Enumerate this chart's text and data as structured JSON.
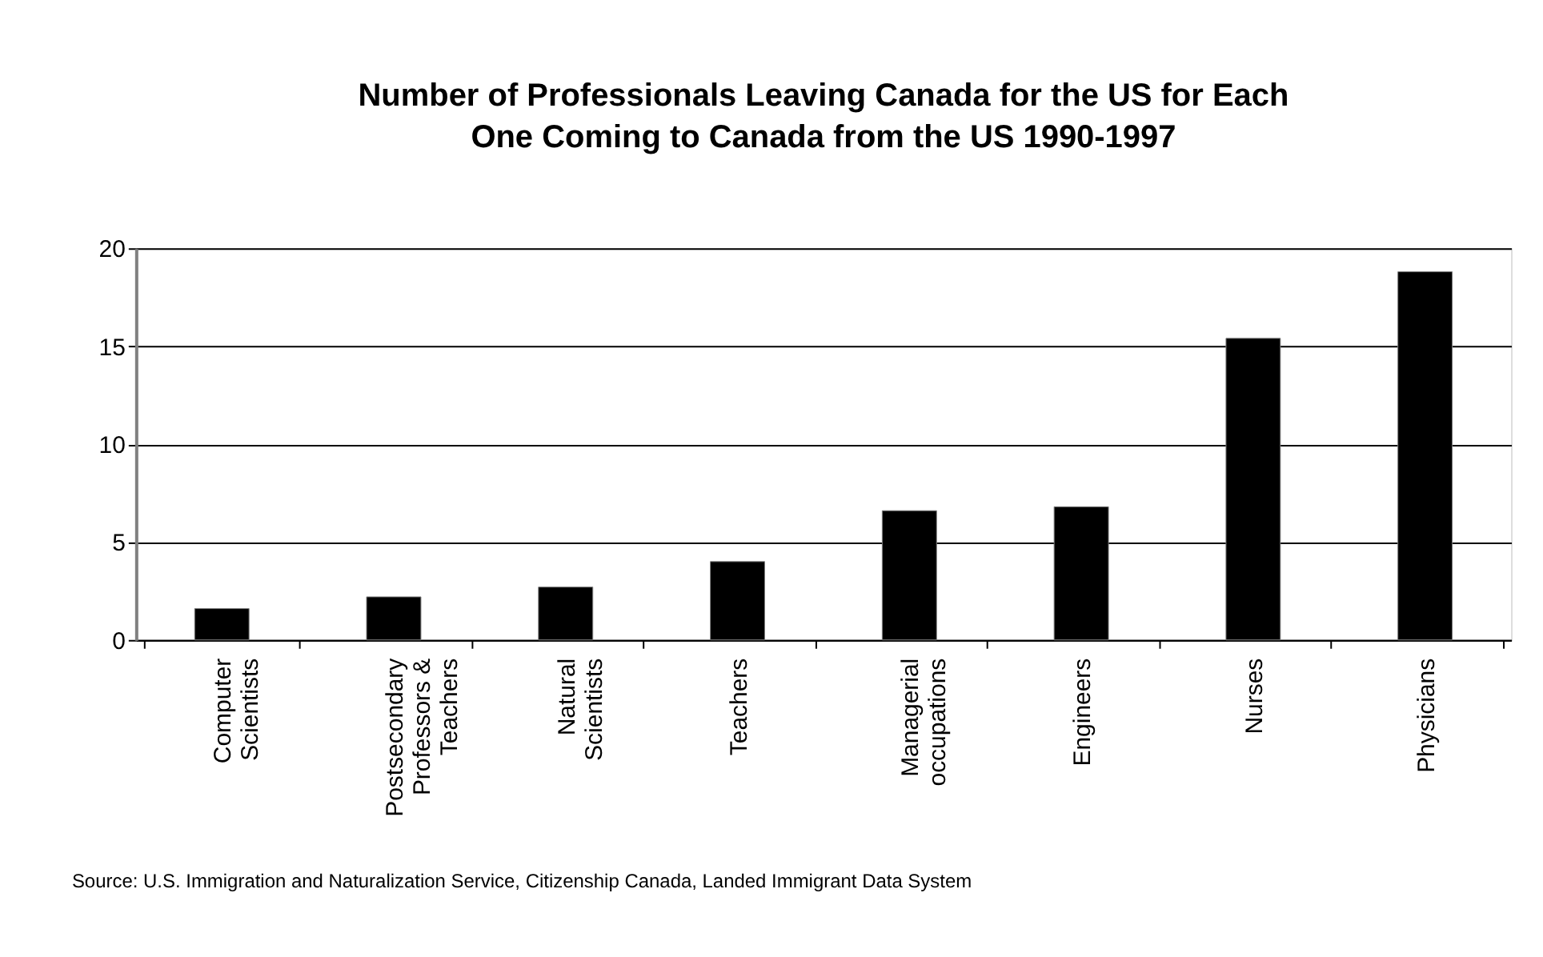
{
  "chart_data": {
    "type": "bar",
    "title": "Number of Professionals Leaving Canada for the US for Each\nOne Coming to Canada from the US 1990-1997",
    "categories": [
      "Computer\nScientists",
      "Postsecondary\nProfessors &\nTeachers",
      "Natural\nScientists",
      "Teachers",
      "Managerial\noccupations",
      "Engineers",
      "Nurses",
      "Physicians"
    ],
    "values": [
      1.6,
      2.2,
      2.7,
      4.0,
      6.6,
      6.8,
      15.4,
      18.8
    ],
    "color": "#000000",
    "ylim": [
      0,
      20
    ],
    "yticks": [
      0,
      5,
      10,
      15,
      20
    ],
    "grid": "y",
    "annotations": [
      "Source: U.S. Immigration and Naturalization Service, Citizenship Canada, Landed Immigrant Data System"
    ]
  }
}
